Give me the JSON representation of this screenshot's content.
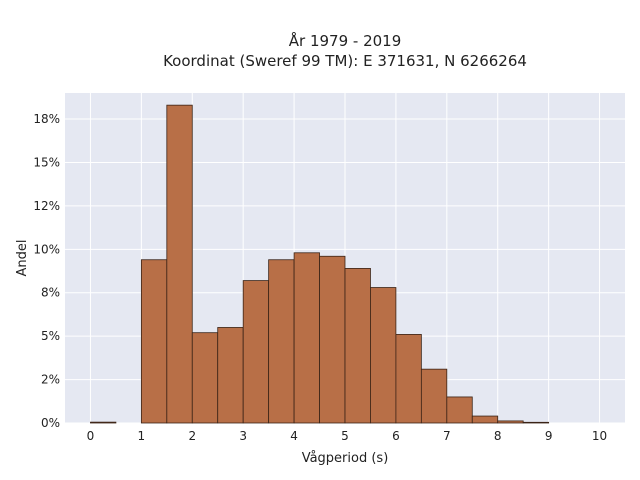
{
  "chart_data": {
    "type": "bar",
    "title": [
      "År 1979 - 2019",
      "Koordinat (Sweref 99 TM): E 371631, N 6266264"
    ],
    "xlabel": "Vågperiod (s)",
    "ylabel": "Andel",
    "bin_width": 0.5,
    "bins_start": [
      0,
      0.5,
      1,
      1.5,
      2,
      2.5,
      3,
      3.5,
      4,
      4.5,
      5,
      5.5,
      6,
      6.5,
      7,
      7.5,
      8,
      8.5,
      9,
      9.5
    ],
    "values": [
      0.0005,
      0,
      0.094,
      0.183,
      0.052,
      0.055,
      0.082,
      0.094,
      0.098,
      0.096,
      0.089,
      0.078,
      0.051,
      0.031,
      0.015,
      0.004,
      0.0012,
      0.0004,
      0,
      0
    ],
    "xlim": [
      -0.5,
      10.5
    ],
    "ylim": [
      0,
      0.19
    ],
    "x_ticks": [
      0,
      1,
      2,
      3,
      4,
      5,
      6,
      7,
      8,
      9,
      10
    ],
    "y_ticks": [
      0,
      0.025,
      0.05,
      0.075,
      0.1,
      0.125,
      0.15,
      0.175
    ],
    "y_tick_labels": [
      "0%",
      "2%",
      "5%",
      "8%",
      "10%",
      "12%",
      "15%",
      "18%"
    ],
    "grid": true,
    "colors": {
      "bar_fill": "#b86f47",
      "bar_stroke": "#3a2316",
      "plot_bg": "#e5e8f2",
      "grid": "#ffffff"
    }
  }
}
